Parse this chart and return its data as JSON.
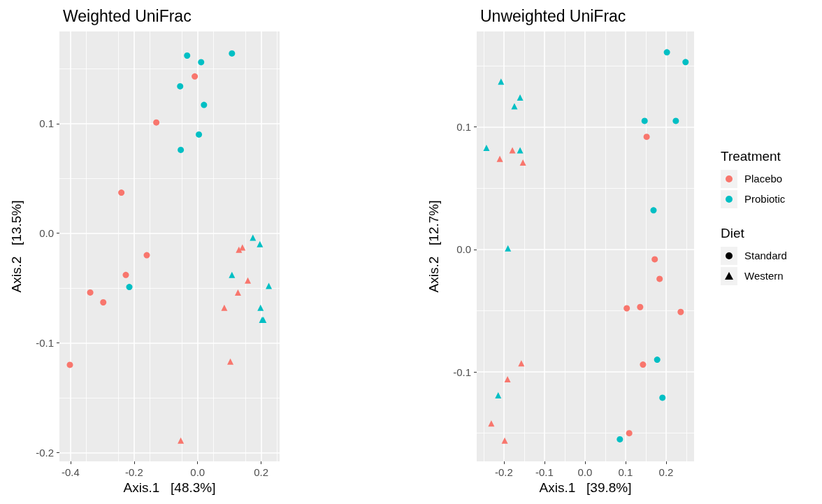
{
  "chart_data": [
    {
      "type": "scatter",
      "title": "Weighted UniFrac",
      "xlabel": "Axis.1   [48.3%]",
      "ylabel": "Axis.2   [13.5%]",
      "xlim": [
        -0.435,
        0.258
      ],
      "xticks": [
        -0.4,
        -0.2,
        {
          "value": 0,
          "label": "0.0"
        },
        0.2
      ],
      "ylim": [
        -0.208,
        0.184
      ],
      "yticks": [
        -0.2,
        -0.1,
        {
          "value": 0,
          "label": "0.0"
        },
        0.1
      ],
      "grid": true,
      "legend": false,
      "series": [
        {
          "color": "#f8766d",
          "marker": "circle",
          "x": [
            -0.009,
            -0.13,
            -0.24,
            -0.16,
            -0.226,
            -0.338,
            -0.297,
            -0.402
          ],
          "values": [
            0.143,
            0.101,
            0.037,
            -0.02,
            -0.038,
            -0.054,
            -0.063,
            -0.12
          ]
        },
        {
          "color": "#00bfc4",
          "marker": "circle",
          "x": [
            -0.033,
            0.011,
            0.108,
            -0.055,
            0.02,
            0.004,
            -0.053,
            -0.215
          ],
          "values": [
            0.162,
            0.156,
            0.164,
            0.134,
            0.117,
            0.09,
            0.076,
            -0.049
          ]
        },
        {
          "color": "#f8766d",
          "marker": "triangle",
          "x": [
            0.13,
            0.141,
            0.158,
            0.127,
            0.084,
            0.103,
            -0.053
          ],
          "values": [
            -0.015,
            -0.013,
            -0.043,
            -0.054,
            -0.068,
            -0.117,
            -0.189
          ]
        },
        {
          "color": "#00bfc4",
          "marker": "triangle",
          "x": [
            0.174,
            0.196,
            0.108,
            0.224,
            0.198,
            0.207,
            0.203
          ],
          "values": [
            -0.004,
            -0.01,
            -0.038,
            -0.048,
            -0.068,
            -0.079,
            -0.079
          ]
        }
      ]
    },
    {
      "type": "scatter",
      "title": "Unweighted UniFrac",
      "xlabel": "Axis.1   [39.8%]",
      "ylabel": "Axis.2   [12.7%]",
      "xlim": [
        -0.267,
        0.269
      ],
      "xticks": [
        -0.2,
        -0.1,
        {
          "value": 0,
          "label": "0.0"
        },
        0.1,
        0.2
      ],
      "ylim": [
        -0.173,
        0.178
      ],
      "yticks": [
        -0.1,
        {
          "value": 0,
          "label": "0.0"
        },
        0.1
      ],
      "grid": true,
      "legend": "right",
      "legend_title": "Treatment",
      "annotations": [
        "Diet",
        "Standard",
        "Western"
      ],
      "series": [
        {
          "name": "Placebo",
          "color": "#f8766d",
          "marker": "circle",
          "x": [
            0.152,
            0.172,
            0.184,
            0.103,
            0.136,
            0.236,
            0.143,
            0.109
          ],
          "values": [
            0.092,
            -0.008,
            -0.024,
            -0.048,
            -0.047,
            -0.051,
            -0.094,
            -0.15
          ]
        },
        {
          "name": "Probiotic",
          "color": "#00bfc4",
          "marker": "circle",
          "x": [
            0.202,
            0.248,
            0.147,
            0.224,
            0.169,
            0.178,
            0.191,
            0.086
          ],
          "values": [
            0.161,
            0.153,
            0.105,
            0.105,
            0.032,
            -0.09,
            -0.121,
            -0.155
          ]
        },
        {
          "color": "#f8766d",
          "marker": "triangle",
          "x": [
            -0.179,
            -0.21,
            -0.153,
            -0.157,
            -0.191,
            -0.231,
            -0.198
          ],
          "values": [
            0.081,
            0.074,
            0.071,
            -0.093,
            -0.106,
            -0.142,
            -0.156
          ]
        },
        {
          "color": "#00bfc4",
          "marker": "triangle",
          "x": [
            -0.207,
            -0.16,
            -0.174,
            -0.243,
            -0.16,
            -0.19,
            -0.214
          ],
          "values": [
            0.137,
            0.124,
            0.117,
            0.083,
            0.081,
            0.001,
            -0.119
          ]
        }
      ]
    }
  ]
}
